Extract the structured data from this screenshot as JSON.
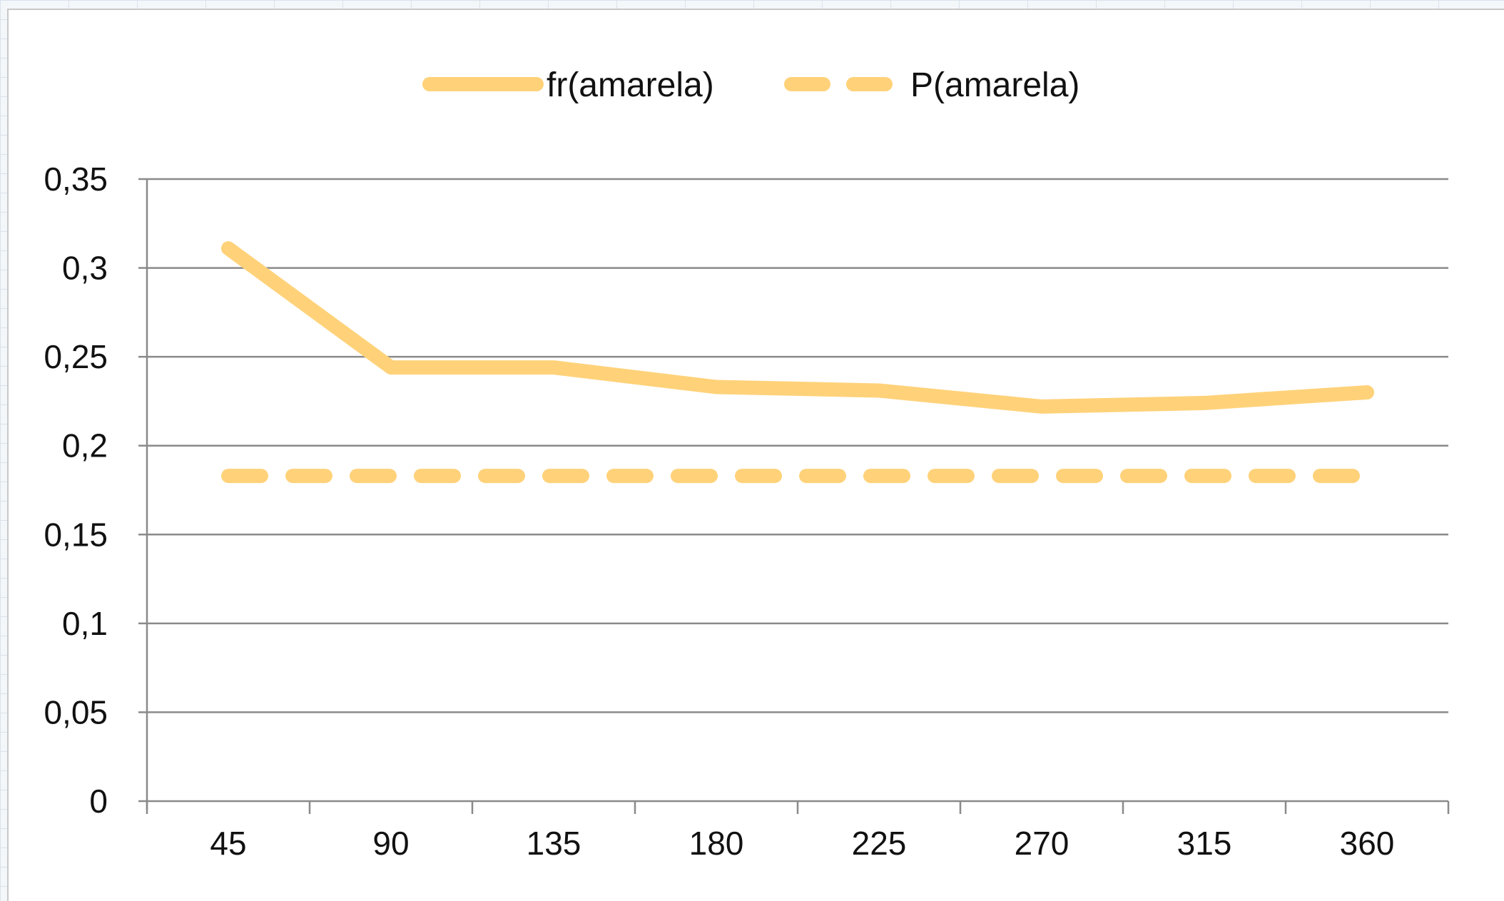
{
  "chart_data": {
    "type": "line",
    "categories": [
      "45",
      "90",
      "135",
      "180",
      "225",
      "270",
      "315",
      "360"
    ],
    "series": [
      {
        "name": "fr(amarela)",
        "style": "solid",
        "color": "#FFD27A",
        "values": [
          0.311,
          0.244,
          0.244,
          0.233,
          0.231,
          0.222,
          0.224,
          0.23
        ]
      },
      {
        "name": "P(amarela)",
        "style": "dashed",
        "color": "#FFD27A",
        "values": [
          0.183,
          0.183,
          0.183,
          0.183,
          0.183,
          0.183,
          0.183,
          0.183
        ]
      }
    ],
    "yticks": [
      "0",
      "0,05",
      "0,1",
      "0,15",
      "0,2",
      "0,25",
      "0,3",
      "0,35"
    ],
    "ylim": [
      0,
      0.35
    ],
    "grid": true,
    "legend_position": "top"
  }
}
